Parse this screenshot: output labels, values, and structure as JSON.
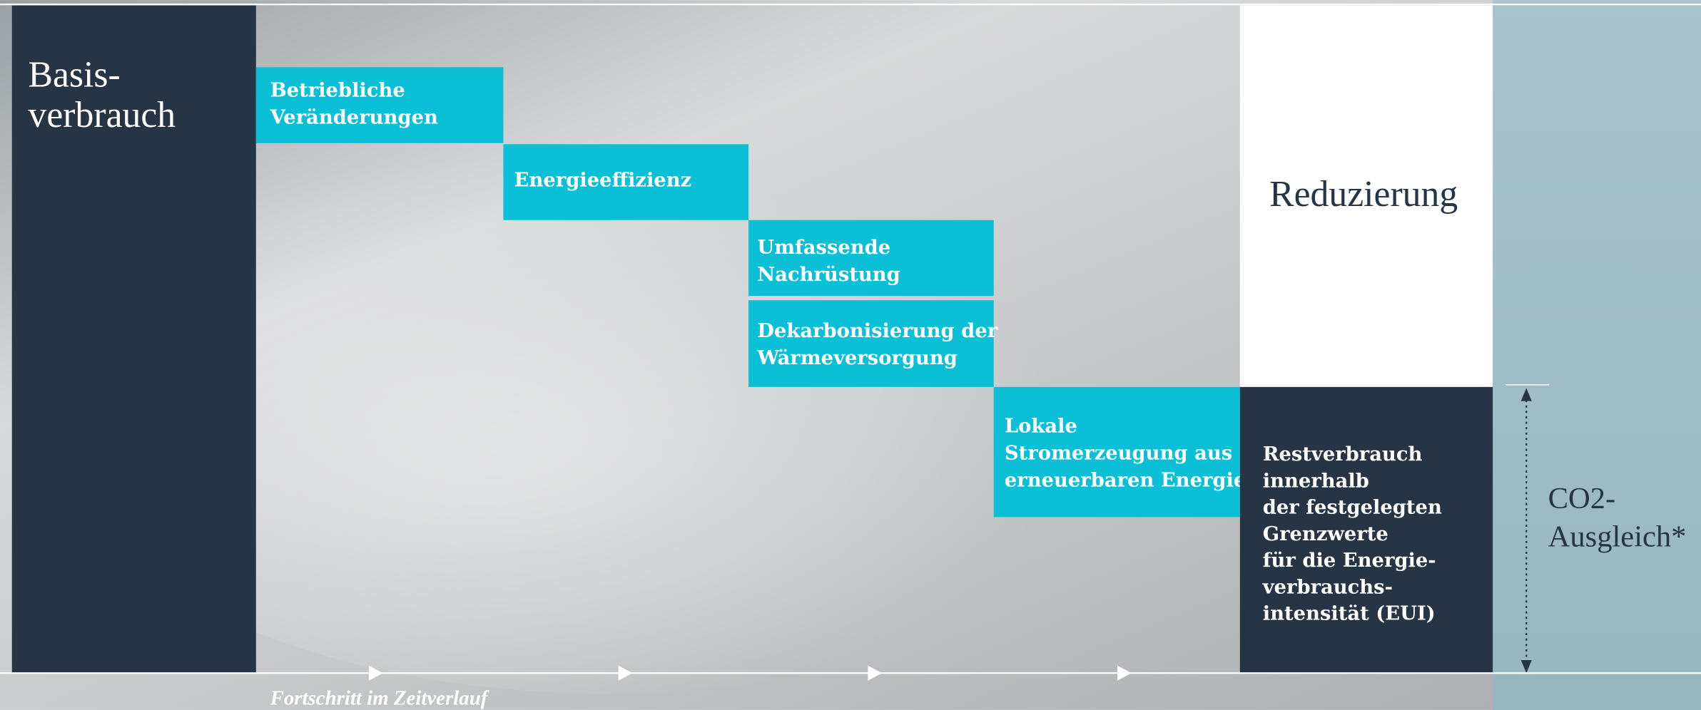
{
  "base": {
    "lines": [
      "Basis-",
      "verbrauch"
    ]
  },
  "steps": [
    {
      "lines": [
        "Betriebliche",
        "Veränderungen"
      ]
    },
    {
      "lines": [
        "Energieeffizienz"
      ]
    },
    {
      "lines": [
        "Umfassende",
        "Nachrüstung"
      ]
    },
    {
      "lines": [
        "Dekarbonisierung der",
        "Wärmeversorgung"
      ]
    },
    {
      "lines": [
        "Lokale",
        "Stromerzeugung aus",
        "erneuerbaren Energie"
      ]
    }
  ],
  "reduction": {
    "label": "Reduzierung"
  },
  "residual": {
    "lines": [
      "Restverbrauch",
      "innerhalb",
      "der festgelegten",
      "Grenzwerte",
      "für die Energie-",
      "verbrauchs-",
      "intensität (EUI)"
    ]
  },
  "offset": {
    "lines": [
      "CO2-",
      "Ausgleich*"
    ]
  },
  "timeline": {
    "label": "Fortschritt im Zeitverlauf"
  }
}
